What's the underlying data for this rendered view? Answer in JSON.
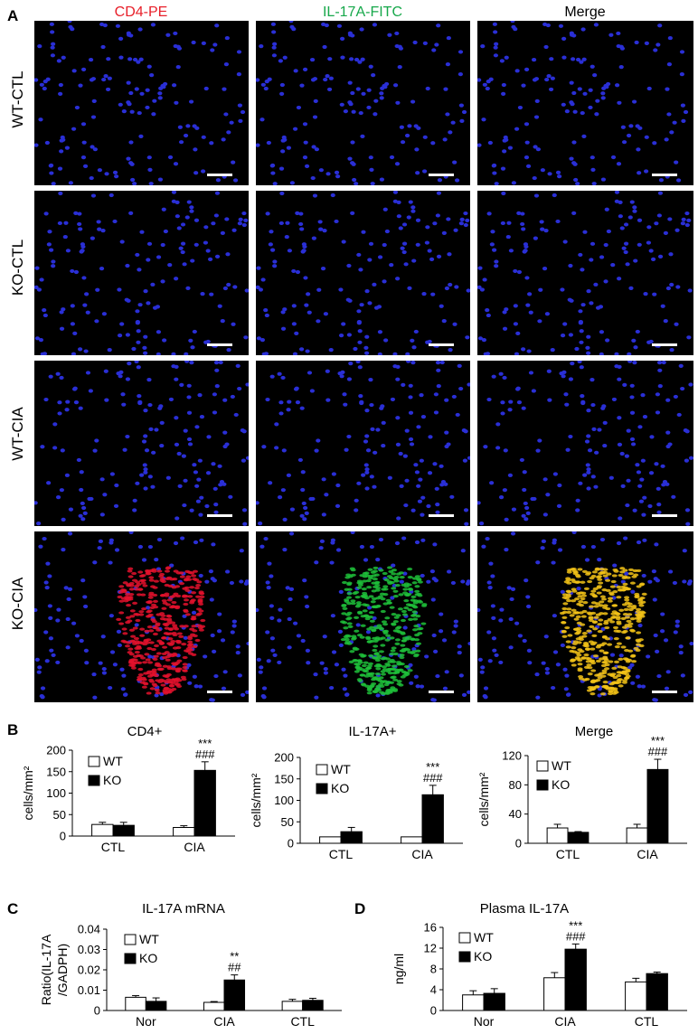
{
  "panels": {
    "A": "A",
    "B": "B",
    "C": "C",
    "D": "D"
  },
  "micrograph_grid": {
    "columns": [
      {
        "label": "CD4-PE",
        "color": "#e8202a"
      },
      {
        "label": "IL-17A-FITC",
        "color": "#17a84b"
      },
      {
        "label": "Merge",
        "color": "#000000"
      }
    ],
    "rows": [
      "WT-CTL",
      "KO-CTL",
      "WT-CIA",
      "KO-CIA"
    ]
  },
  "chart_data": [
    {
      "type": "bar",
      "title": "CD4+",
      "ylabel": "cells/mm²",
      "categories": [
        "CTL",
        "CIA"
      ],
      "ylim": [
        0,
        200
      ],
      "yticks": [
        0,
        50,
        100,
        150,
        200
      ],
      "series": [
        {
          "name": "WT",
          "values": [
            27,
            20
          ],
          "errors": [
            5,
            4
          ],
          "fill": "#ffffff"
        },
        {
          "name": "KO",
          "values": [
            25,
            153
          ],
          "errors": [
            7,
            20
          ],
          "fill": "#000000"
        }
      ],
      "annotations": [
        {
          "category": "CIA",
          "series": "KO",
          "lines": [
            "***",
            "###"
          ]
        }
      ],
      "legend": "top-left"
    },
    {
      "type": "bar",
      "title": "IL-17A+",
      "ylabel": "cells/mm²",
      "categories": [
        "CTL",
        "CIA"
      ],
      "ylim": [
        0,
        200
      ],
      "yticks": [
        0,
        50,
        100,
        150,
        200
      ],
      "series": [
        {
          "name": "WT",
          "values": [
            15,
            15
          ],
          "errors": [
            0,
            0
          ],
          "fill": "#ffffff"
        },
        {
          "name": "KO",
          "values": [
            27,
            113
          ],
          "errors": [
            10,
            22
          ],
          "fill": "#000000"
        }
      ],
      "annotations": [
        {
          "category": "CIA",
          "series": "KO",
          "lines": [
            "***",
            "###"
          ]
        }
      ],
      "legend": "top-left"
    },
    {
      "type": "bar",
      "title": "Merge",
      "ylabel": "cells/mm²",
      "categories": [
        "CTL",
        "CIA"
      ],
      "ylim": [
        0,
        120
      ],
      "yticks": [
        0,
        40,
        80,
        120
      ],
      "series": [
        {
          "name": "WT",
          "values": [
            21,
            21
          ],
          "errors": [
            5,
            5
          ],
          "fill": "#ffffff"
        },
        {
          "name": "KO",
          "values": [
            15,
            101
          ],
          "errors": [
            1,
            14
          ],
          "fill": "#000000"
        }
      ],
      "annotations": [
        {
          "category": "CIA",
          "series": "KO",
          "lines": [
            "***",
            "###"
          ]
        }
      ],
      "legend": "top-left"
    },
    {
      "type": "bar",
      "title": "IL-17A mRNA",
      "ylabel": "Ratio(IL-17A\n/GADPH)",
      "categories": [
        "Nor",
        "CIA",
        "CTL"
      ],
      "ylim": [
        0,
        0.04
      ],
      "yticks": [
        0,
        0.01,
        0.02,
        0.03,
        0.04
      ],
      "series": [
        {
          "name": "WT",
          "values": [
            0.0065,
            0.004,
            0.0045
          ],
          "errors": [
            0.0008,
            0.0004,
            0.001
          ],
          "fill": "#ffffff"
        },
        {
          "name": "KO",
          "values": [
            0.0045,
            0.015,
            0.005
          ],
          "errors": [
            0.0017,
            0.0025,
            0.001
          ],
          "fill": "#000000"
        }
      ],
      "annotations": [
        {
          "category": "CIA",
          "series": "KO",
          "lines": [
            "**",
            "##"
          ]
        }
      ],
      "legend": "top-left"
    },
    {
      "type": "bar",
      "title": "Plasma IL-17A",
      "ylabel": "ng/ml",
      "categories": [
        "Nor",
        "CIA",
        "CTL"
      ],
      "ylim": [
        0,
        16
      ],
      "yticks": [
        0,
        4,
        8,
        12,
        16
      ],
      "series": [
        {
          "name": "WT",
          "values": [
            3.0,
            6.3,
            5.5
          ],
          "errors": [
            0.8,
            1.0,
            0.7
          ],
          "fill": "#ffffff"
        },
        {
          "name": "KO",
          "values": [
            3.3,
            11.8,
            7.1
          ],
          "errors": [
            0.9,
            1.0,
            0.3
          ],
          "fill": "#000000"
        }
      ],
      "annotations": [
        {
          "category": "CIA",
          "series": "KO",
          "lines": [
            "***",
            "###"
          ]
        }
      ],
      "legend": "top-left"
    }
  ]
}
